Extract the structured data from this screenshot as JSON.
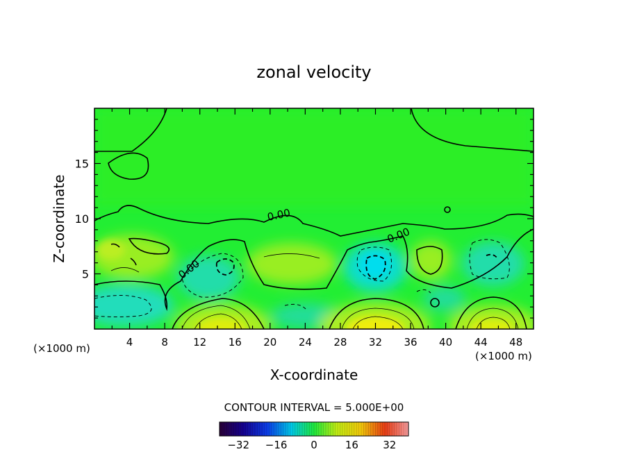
{
  "chart_data": {
    "type": "heatmap",
    "title": "zonal velocity",
    "xlabel": "X-coordinate",
    "ylabel": "Z-coordinate",
    "x_unit_left": "(×1000 m)",
    "x_unit_right": "(×1000 m)",
    "xlim": [
      0,
      50
    ],
    "ylim": [
      0,
      20
    ],
    "x_ticks": [
      "4",
      "8",
      "12",
      "16",
      "20",
      "24",
      "28",
      "32",
      "36",
      "40",
      "44",
      "48"
    ],
    "x_tick_values": [
      4,
      8,
      12,
      16,
      20,
      24,
      28,
      32,
      36,
      40,
      44,
      48
    ],
    "y_ticks": [
      "5",
      "10",
      "15"
    ],
    "y_tick_values": [
      5,
      10,
      15
    ],
    "contour_labels": [
      "0.00",
      "0.00",
      "0.00"
    ],
    "contour_interval": "CONTOUR INTERVAL = 5.000E+00",
    "colorbar": {
      "range": [
        -40,
        40
      ],
      "ticks": [
        "−32",
        "−16",
        "0",
        "16",
        "32"
      ],
      "tick_values": [
        -32,
        -16,
        0,
        16,
        32
      ]
    },
    "colors": {
      "background_field": "#22ee22",
      "negative": "#22ddcc",
      "positive": "#bbee22",
      "strong_positive": "#eeee11"
    }
  }
}
